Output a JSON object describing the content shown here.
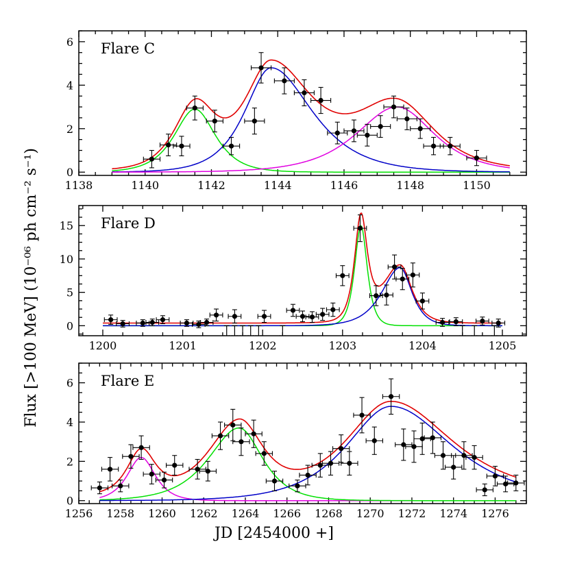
{
  "figure": {
    "ylabel": "Flux [>100 MeV] (10⁻⁰⁶ ph cm⁻² s⁻¹)",
    "xlabel": "JD [2454000 +]"
  },
  "colors": {
    "data": "#000000",
    "total_fit": "#e00000",
    "comp_green": "#00e000",
    "comp_blue": "#0000c8",
    "comp_magenta": "#e000e0"
  },
  "chart_data": [
    {
      "type": "scatter",
      "panel_label": "Flare C",
      "xlim": [
        1138,
        1151.5
      ],
      "ylim": [
        -0.15,
        6.5
      ],
      "xticks": [
        1138,
        1140,
        1142,
        1144,
        1146,
        1148,
        1150
      ],
      "yticks": [
        0,
        2,
        4,
        6
      ],
      "fit_range": [
        1139,
        1151
      ],
      "points": [
        {
          "x": 1140.2,
          "y": 0.6,
          "xerr": 0.25,
          "yerr": 0.4
        },
        {
          "x": 1140.7,
          "y": 1.25,
          "xerr": 0.25,
          "yerr": 0.5
        },
        {
          "x": 1141.1,
          "y": 1.2,
          "xerr": 0.25,
          "yerr": 0.45
        },
        {
          "x": 1141.5,
          "y": 2.95,
          "xerr": 0.25,
          "yerr": 0.55
        },
        {
          "x": 1142.1,
          "y": 2.35,
          "xerr": 0.25,
          "yerr": 0.5
        },
        {
          "x": 1142.6,
          "y": 1.2,
          "xerr": 0.25,
          "yerr": 0.4
        },
        {
          "x": 1143.3,
          "y": 2.35,
          "xerr": 0.3,
          "yerr": 0.6
        },
        {
          "x": 1143.5,
          "y": 4.8,
          "xerr": 0.3,
          "yerr": 0.7
        },
        {
          "x": 1144.2,
          "y": 4.2,
          "xerr": 0.3,
          "yerr": 0.6
        },
        {
          "x": 1144.8,
          "y": 3.65,
          "xerr": 0.3,
          "yerr": 0.6
        },
        {
          "x": 1145.3,
          "y": 3.3,
          "xerr": 0.3,
          "yerr": 0.6
        },
        {
          "x": 1145.8,
          "y": 1.8,
          "xerr": 0.3,
          "yerr": 0.5
        },
        {
          "x": 1146.3,
          "y": 1.9,
          "xerr": 0.3,
          "yerr": 0.5
        },
        {
          "x": 1146.7,
          "y": 1.7,
          "xerr": 0.3,
          "yerr": 0.5
        },
        {
          "x": 1147.1,
          "y": 2.1,
          "xerr": 0.3,
          "yerr": 0.5
        },
        {
          "x": 1147.5,
          "y": 3.0,
          "xerr": 0.3,
          "yerr": 0.5
        },
        {
          "x": 1147.9,
          "y": 2.45,
          "xerr": 0.3,
          "yerr": 0.5
        },
        {
          "x": 1148.3,
          "y": 2.0,
          "xerr": 0.3,
          "yerr": 0.45
        },
        {
          "x": 1148.7,
          "y": 1.2,
          "xerr": 0.3,
          "yerr": 0.4
        },
        {
          "x": 1149.2,
          "y": 1.2,
          "xerr": 0.3,
          "yerr": 0.4
        },
        {
          "x": 1150.0,
          "y": 0.65,
          "xerr": 0.3,
          "yerr": 0.35
        }
      ],
      "components": [
        {
          "color": "comp_green",
          "t0": 1141.5,
          "peak": 2.9,
          "tr": 0.55,
          "td": 0.55
        },
        {
          "color": "comp_blue",
          "t0": 1143.8,
          "peak": 4.8,
          "tr": 0.7,
          "td": 1.1
        },
        {
          "color": "comp_magenta",
          "t0": 1147.6,
          "peak": 3.0,
          "tr": 1.1,
          "td": 1.0
        }
      ],
      "total_fit_offset": 0.08
    },
    {
      "type": "scatter",
      "panel_label": "Flare D",
      "xlim": [
        1199.7,
        1205.3
      ],
      "ylim": [
        -1.5,
        18
      ],
      "xticks": [
        1200,
        1201,
        1202,
        1203,
        1204,
        1205
      ],
      "yticks": [
        0,
        5,
        10,
        15
      ],
      "fit_range": [
        1200,
        1205
      ],
      "points": [
        {
          "x": 1200.1,
          "y": 0.9,
          "xerr": 0.08,
          "yerr": 0.7
        },
        {
          "x": 1200.25,
          "y": 0.3,
          "xerr": 0.08,
          "yerr": 0.5
        },
        {
          "x": 1200.5,
          "y": 0.4,
          "xerr": 0.08,
          "yerr": 0.5
        },
        {
          "x": 1200.62,
          "y": 0.5,
          "xerr": 0.08,
          "yerr": 0.5
        },
        {
          "x": 1200.75,
          "y": 0.9,
          "xerr": 0.08,
          "yerr": 0.6
        },
        {
          "x": 1201.05,
          "y": 0.4,
          "xerr": 0.08,
          "yerr": 0.5
        },
        {
          "x": 1201.2,
          "y": 0.2,
          "xerr": 0.08,
          "yerr": 0.5
        },
        {
          "x": 1201.3,
          "y": 0.5,
          "xerr": 0.08,
          "yerr": 0.5
        },
        {
          "x": 1201.42,
          "y": 1.6,
          "xerr": 0.08,
          "yerr": 0.9
        },
        {
          "x": 1201.65,
          "y": 1.4,
          "xerr": 0.08,
          "yerr": 1.0
        },
        {
          "x": 1202.02,
          "y": 1.4,
          "xerr": 0.08,
          "yerr": 0.9
        },
        {
          "x": 1202.38,
          "y": 2.3,
          "xerr": 0.08,
          "yerr": 0.9
        },
        {
          "x": 1202.5,
          "y": 1.4,
          "xerr": 0.08,
          "yerr": 0.8
        },
        {
          "x": 1202.62,
          "y": 1.3,
          "xerr": 0.08,
          "yerr": 0.8
        },
        {
          "x": 1202.75,
          "y": 1.7,
          "xerr": 0.08,
          "yerr": 0.9
        },
        {
          "x": 1202.88,
          "y": 2.4,
          "xerr": 0.08,
          "yerr": 1.0
        },
        {
          "x": 1203.0,
          "y": 7.5,
          "xerr": 0.08,
          "yerr": 1.5
        },
        {
          "x": 1203.22,
          "y": 14.6,
          "xerr": 0.08,
          "yerr": 2.0
        },
        {
          "x": 1203.42,
          "y": 4.5,
          "xerr": 0.08,
          "yerr": 1.5
        },
        {
          "x": 1203.55,
          "y": 4.6,
          "xerr": 0.08,
          "yerr": 1.5
        },
        {
          "x": 1203.65,
          "y": 8.8,
          "xerr": 0.08,
          "yerr": 1.8
        },
        {
          "x": 1203.75,
          "y": 7.0,
          "xerr": 0.08,
          "yerr": 1.6
        },
        {
          "x": 1203.88,
          "y": 7.6,
          "xerr": 0.08,
          "yerr": 1.8
        },
        {
          "x": 1204.0,
          "y": 3.7,
          "xerr": 0.08,
          "yerr": 1.2
        },
        {
          "x": 1204.25,
          "y": 0.5,
          "xerr": 0.08,
          "yerr": 0.6
        },
        {
          "x": 1204.42,
          "y": 0.6,
          "xerr": 0.08,
          "yerr": 0.6
        },
        {
          "x": 1204.75,
          "y": 0.7,
          "xerr": 0.08,
          "yerr": 0.6
        },
        {
          "x": 1204.95,
          "y": 0.4,
          "xerr": 0.08,
          "yerr": 0.6
        }
      ],
      "upper_limits": [
        1201.55,
        1201.65,
        1201.75,
        1201.85,
        1201.95,
        1202.25,
        1204.5,
        1204.65,
        1204.9
      ],
      "components": [
        {
          "color": "comp_green",
          "t0": 1203.23,
          "peak": 15.0,
          "tr": 0.07,
          "td": 0.07
        },
        {
          "color": "comp_blue",
          "t0": 1203.72,
          "peak": 8.7,
          "tr": 0.2,
          "td": 0.13
        }
      ],
      "total_fit_offset": 0.4
    },
    {
      "type": "scatter",
      "panel_label": "Flare E",
      "xlim": [
        1256,
        1277.5
      ],
      "ylim": [
        -0.15,
        7
      ],
      "xticks": [
        1256,
        1258,
        1260,
        1262,
        1264,
        1266,
        1268,
        1270,
        1272,
        1274,
        1276
      ],
      "yticks": [
        0,
        2,
        4,
        6
      ],
      "fit_range": [
        1257,
        1277
      ],
      "points": [
        {
          "x": 1257.0,
          "y": 0.65,
          "xerr": 0.4,
          "yerr": 0.3
        },
        {
          "x": 1257.5,
          "y": 1.6,
          "xerr": 0.4,
          "yerr": 0.6
        },
        {
          "x": 1258.0,
          "y": 0.75,
          "xerr": 0.4,
          "yerr": 0.3
        },
        {
          "x": 1258.5,
          "y": 2.25,
          "xerr": 0.4,
          "yerr": 0.6
        },
        {
          "x": 1259.0,
          "y": 2.7,
          "xerr": 0.4,
          "yerr": 0.6
        },
        {
          "x": 1259.5,
          "y": 1.35,
          "xerr": 0.4,
          "yerr": 0.5
        },
        {
          "x": 1260.1,
          "y": 1.05,
          "xerr": 0.4,
          "yerr": 0.4
        },
        {
          "x": 1260.6,
          "y": 1.8,
          "xerr": 0.4,
          "yerr": 0.5
        },
        {
          "x": 1261.7,
          "y": 1.6,
          "xerr": 0.4,
          "yerr": 0.5
        },
        {
          "x": 1262.2,
          "y": 1.5,
          "xerr": 0.4,
          "yerr": 0.5
        },
        {
          "x": 1262.8,
          "y": 3.3,
          "xerr": 0.4,
          "yerr": 0.7
        },
        {
          "x": 1263.4,
          "y": 3.85,
          "xerr": 0.4,
          "yerr": 0.8
        },
        {
          "x": 1263.8,
          "y": 3.0,
          "xerr": 0.4,
          "yerr": 0.7
        },
        {
          "x": 1264.4,
          "y": 3.4,
          "xerr": 0.4,
          "yerr": 0.7
        },
        {
          "x": 1264.9,
          "y": 2.4,
          "xerr": 0.4,
          "yerr": 0.6
        },
        {
          "x": 1265.4,
          "y": 1.0,
          "xerr": 0.4,
          "yerr": 0.5
        },
        {
          "x": 1266.5,
          "y": 0.75,
          "xerr": 0.4,
          "yerr": 0.3
        },
        {
          "x": 1267.0,
          "y": 1.3,
          "xerr": 0.4,
          "yerr": 0.5
        },
        {
          "x": 1267.6,
          "y": 1.8,
          "xerr": 0.4,
          "yerr": 0.6
        },
        {
          "x": 1268.1,
          "y": 1.9,
          "xerr": 0.4,
          "yerr": 0.6
        },
        {
          "x": 1268.6,
          "y": 2.65,
          "xerr": 0.4,
          "yerr": 0.7
        },
        {
          "x": 1269.0,
          "y": 1.9,
          "xerr": 0.4,
          "yerr": 0.6
        },
        {
          "x": 1269.6,
          "y": 4.35,
          "xerr": 0.4,
          "yerr": 0.9
        },
        {
          "x": 1270.2,
          "y": 3.05,
          "xerr": 0.4,
          "yerr": 0.7
        },
        {
          "x": 1271.0,
          "y": 5.3,
          "xerr": 0.4,
          "yerr": 0.9
        },
        {
          "x": 1271.6,
          "y": 2.85,
          "xerr": 0.4,
          "yerr": 0.8
        },
        {
          "x": 1272.1,
          "y": 2.75,
          "xerr": 0.4,
          "yerr": 0.8
        },
        {
          "x": 1272.5,
          "y": 3.15,
          "xerr": 0.4,
          "yerr": 0.8
        },
        {
          "x": 1273.0,
          "y": 3.2,
          "xerr": 0.4,
          "yerr": 0.8
        },
        {
          "x": 1273.5,
          "y": 2.3,
          "xerr": 0.4,
          "yerr": 0.7
        },
        {
          "x": 1274.0,
          "y": 1.7,
          "xerr": 0.4,
          "yerr": 0.6
        },
        {
          "x": 1274.5,
          "y": 2.3,
          "xerr": 0.4,
          "yerr": 0.7
        },
        {
          "x": 1275.0,
          "y": 2.2,
          "xerr": 0.4,
          "yerr": 0.6
        },
        {
          "x": 1275.5,
          "y": 0.55,
          "xerr": 0.4,
          "yerr": 0.3
        },
        {
          "x": 1276.0,
          "y": 1.25,
          "xerr": 0.4,
          "yerr": 0.5
        },
        {
          "x": 1276.5,
          "y": 0.85,
          "xerr": 0.4,
          "yerr": 0.4
        },
        {
          "x": 1277.0,
          "y": 0.9,
          "xerr": 0.4,
          "yerr": 0.4
        }
      ],
      "components": [
        {
          "color": "comp_magenta",
          "t0": 1259.0,
          "peak": 2.2,
          "tr": 0.6,
          "td": 0.6
        },
        {
          "color": "comp_green",
          "t0": 1263.7,
          "peak": 3.7,
          "tr": 1.3,
          "td": 1.0
        },
        {
          "color": "comp_blue",
          "t0": 1271.0,
          "peak": 4.8,
          "tr": 1.9,
          "td": 2.6
        }
      ],
      "total_fit_offset": 0.25
    }
  ]
}
